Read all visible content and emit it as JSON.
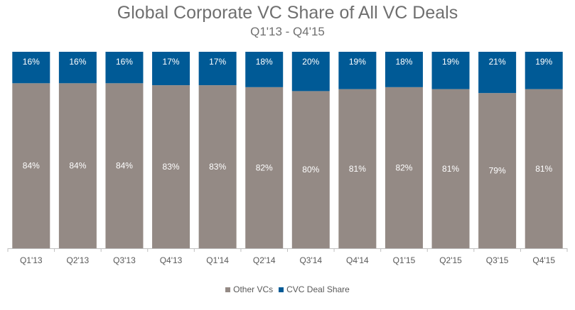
{
  "chart_data": {
    "type": "bar",
    "stacked": true,
    "percent": true,
    "title": "Global Corporate VC Share of All VC Deals",
    "subtitle": "Q1'13 - Q4'15",
    "categories": [
      "Q1'13",
      "Q2'13",
      "Q3'13",
      "Q4'13",
      "Q1'14",
      "Q2'14",
      "Q3'14",
      "Q4'14",
      "Q1'15",
      "Q2'15",
      "Q3'15",
      "Q4'15"
    ],
    "series": [
      {
        "name": "Other VCs",
        "color": "#948a85",
        "values": [
          84,
          84,
          84,
          83,
          83,
          82,
          80,
          81,
          82,
          81,
          79,
          81
        ]
      },
      {
        "name": "CVC Deal Share",
        "color": "#005a96",
        "values": [
          16,
          16,
          16,
          17,
          17,
          18,
          20,
          19,
          18,
          19,
          21,
          19
        ]
      }
    ],
    "ylim": [
      0,
      100
    ],
    "value_suffix": "%",
    "grid": false,
    "legend_position": "bottom"
  }
}
